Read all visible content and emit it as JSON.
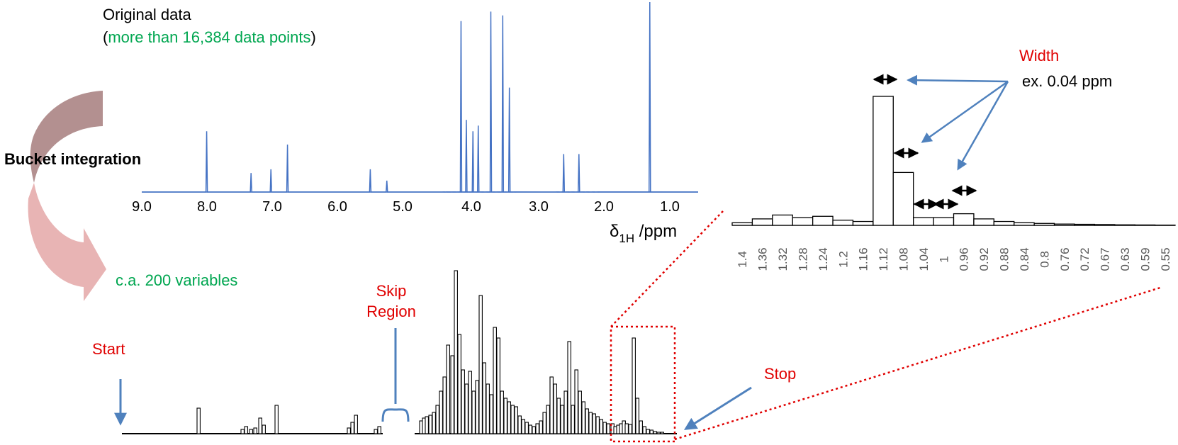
{
  "original": {
    "title": "Original data",
    "open_paren": "(",
    "subtitle": "more than 16,384 data points",
    "close_paren": ")"
  },
  "process_label": "Bucket integration",
  "variables_label": "c.a. 200 variables",
  "labels": {
    "start": "Start",
    "skip_line1": "Skip",
    "skip_line2": "Region",
    "stop": "Stop",
    "width": "Width",
    "width_example": "ex. 0.04 ppm"
  },
  "spectrum_axis": {
    "ticks": [
      "9.0",
      "8.0",
      "7.0",
      "6.0",
      "5.0",
      "4.0",
      "3.0",
      "2.0",
      "1.0"
    ],
    "label_main": "δ",
    "label_sub": "1H",
    "label_unit": " /ppm"
  },
  "colors": {
    "spectrum": "#4472c4",
    "callout_blue": "#4f81bd",
    "red": "#e00000",
    "green": "#00a650",
    "arrow_top": "#b39090",
    "arrow_bottom": "#e8b4b4"
  },
  "chart_data": [
    {
      "type": "line",
      "description": "1H NMR spectrum (original data)",
      "xlabel": "δ1H /ppm",
      "xlim": [
        9.0,
        0.6
      ],
      "peaks": [
        {
          "x": 8.02,
          "y": 0.32
        },
        {
          "x": 7.35,
          "y": 0.1
        },
        {
          "x": 7.05,
          "y": 0.12
        },
        {
          "x": 6.8,
          "y": 0.25
        },
        {
          "x": 5.55,
          "y": 0.12
        },
        {
          "x": 5.3,
          "y": 0.06
        },
        {
          "x": 4.18,
          "y": 0.9
        },
        {
          "x": 4.1,
          "y": 0.38
        },
        {
          "x": 4.0,
          "y": 0.32
        },
        {
          "x": 3.92,
          "y": 0.35
        },
        {
          "x": 3.73,
          "y": 0.95
        },
        {
          "x": 3.55,
          "y": 0.93
        },
        {
          "x": 3.45,
          "y": 0.55
        },
        {
          "x": 2.63,
          "y": 0.2
        },
        {
          "x": 2.4,
          "y": 0.2
        },
        {
          "x": 1.33,
          "y": 1.0
        }
      ]
    },
    {
      "type": "bar",
      "description": "Bucketed spectrum (c.a. 200 variables)",
      "bucket_width_ppm": 0.04
    },
    {
      "type": "bar",
      "description": "Zoomed buckets",
      "categories": [
        "1.4",
        "1.36",
        "1.32",
        "1.28",
        "1.24",
        "1.2",
        "1.16",
        "1.12",
        "1.08",
        "1.04",
        "1",
        "0.96",
        "0.92",
        "0.88",
        "0.84",
        "0.8",
        "0.76",
        "0.72",
        "0.67",
        "0.63",
        "0.59",
        "0.55"
      ],
      "values": [
        2,
        5,
        8,
        6,
        7,
        4,
        3,
        100,
        41,
        6,
        6,
        9,
        5,
        3,
        2,
        1.5,
        1,
        0.8,
        0.6,
        0.4,
        0.3,
        0.2
      ],
      "ylim": [
        0,
        100
      ]
    }
  ]
}
